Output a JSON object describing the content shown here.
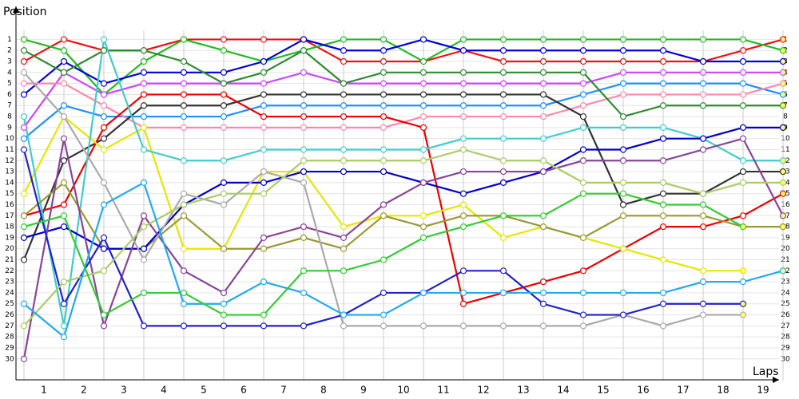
{
  "chart_data": {
    "type": "line",
    "y_label": "Position",
    "x_label": "Laps",
    "x": [
      0,
      1,
      2,
      3,
      4,
      5,
      6,
      7,
      8,
      9,
      10,
      11,
      12,
      13,
      14,
      15,
      16,
      17,
      18,
      19
    ],
    "xlim": [
      -0.2,
      18.9
    ],
    "ylim": [
      31.9,
      -2
    ],
    "xticks": [
      {
        "value": 0.5,
        "label": "1"
      },
      {
        "value": 1.5,
        "label": "2"
      },
      {
        "value": 2.5,
        "label": "3"
      },
      {
        "value": 3.5,
        "label": "4"
      },
      {
        "value": 4.5,
        "label": "5"
      },
      {
        "value": 5.5,
        "label": "6"
      },
      {
        "value": 6.5,
        "label": "7"
      },
      {
        "value": 7.5,
        "label": "8"
      },
      {
        "value": 8.5,
        "label": "9"
      },
      {
        "value": 9.5,
        "label": "10"
      },
      {
        "value": 10.5,
        "label": "11"
      },
      {
        "value": 11.5,
        "label": "12"
      },
      {
        "value": 12.5,
        "label": "13"
      },
      {
        "value": 13.5,
        "label": "14"
      },
      {
        "value": 14.5,
        "label": "15"
      },
      {
        "value": 15.5,
        "label": "16"
      },
      {
        "value": 16.5,
        "label": "17"
      },
      {
        "value": 17.5,
        "label": "18"
      },
      {
        "value": 18.5,
        "label": "19"
      }
    ],
    "yticks": [
      1,
      2,
      3,
      4,
      5,
      6,
      7,
      8,
      9,
      10,
      11,
      12,
      13,
      14,
      15,
      16,
      17,
      18,
      19,
      20,
      21,
      22,
      23,
      24,
      25,
      26,
      27,
      28,
      29,
      30
    ],
    "grid": true,
    "series": [
      {
        "color": "#ee1111",
        "values": [
          3,
          1,
          2,
          2,
          1,
          1,
          1,
          1,
          3,
          3,
          3,
          2,
          3,
          3,
          3,
          3,
          3,
          3,
          2,
          1
        ]
      },
      {
        "color": "#22bb22",
        "values": [
          1,
          2,
          6,
          3,
          1,
          2,
          3,
          2,
          1,
          1,
          3,
          1,
          1,
          1,
          1,
          1,
          1,
          1,
          1,
          2
        ]
      },
      {
        "color": "#0000dd",
        "values": [
          6,
          3,
          5,
          4,
          4,
          4,
          3,
          1,
          2,
          2,
          1,
          2,
          2,
          2,
          2,
          2,
          2,
          3,
          3,
          3
        ]
      },
      {
        "color": "#cc44ff",
        "values": [
          9,
          4,
          6,
          5,
          5,
          5,
          5,
          4,
          5,
          5,
          5,
          5,
          5,
          5,
          5,
          4,
          4,
          4,
          4,
          4
        ]
      },
      {
        "color": "#1e90ff",
        "values": [
          10,
          7,
          8,
          8,
          8,
          8,
          7,
          7,
          7,
          7,
          7,
          7,
          7,
          7,
          6,
          5,
          5,
          5,
          5,
          6
        ]
      },
      {
        "color": "#ff88aa",
        "values": [
          5,
          5,
          7,
          9,
          9,
          9,
          9,
          9,
          9,
          9,
          8,
          8,
          8,
          8,
          7,
          6,
          6,
          6,
          6,
          5
        ]
      },
      {
        "color": "#333333",
        "values": [
          21,
          12,
          10,
          7,
          7,
          7,
          6,
          6,
          6,
          6,
          6,
          6,
          6,
          6,
          8,
          16,
          15,
          15,
          13,
          13
        ]
      },
      {
        "color": "#ee0000",
        "values": [
          17,
          16,
          9,
          6,
          6,
          6,
          8,
          8,
          8,
          8,
          9,
          25,
          24,
          23,
          22,
          20,
          18,
          18,
          17,
          15
        ]
      },
      {
        "color": "#e6e600",
        "values": [
          15,
          8,
          11,
          9,
          20,
          20,
          13,
          13,
          18,
          17,
          17,
          16,
          19,
          18,
          19,
          20,
          21,
          22,
          22,
          null
        ]
      },
      {
        "color": "#2e8b2e",
        "values": [
          2,
          4,
          2,
          2,
          3,
          5,
          4,
          2,
          5,
          4,
          4,
          4,
          4,
          4,
          4,
          8,
          7,
          7,
          7,
          7
        ]
      },
      {
        "color": "#40cccc",
        "values": [
          8,
          27,
          1,
          11,
          12,
          12,
          11,
          11,
          11,
          11,
          11,
          10,
          10,
          10,
          9,
          9,
          9,
          10,
          12,
          12
        ]
      },
      {
        "color": "#999933",
        "values": [
          17,
          14,
          20,
          20,
          17,
          20,
          20,
          19,
          20,
          17,
          18,
          17,
          17,
          18,
          19,
          17,
          17,
          17,
          18,
          18
        ]
      },
      {
        "color": "#0000cc",
        "values": [
          19,
          18,
          20,
          20,
          16,
          14,
          14,
          13,
          13,
          13,
          14,
          15,
          14,
          13,
          11,
          11,
          10,
          10,
          9,
          9
        ]
      },
      {
        "color": "#884499",
        "values": [
          30,
          10,
          27,
          17,
          22,
          24,
          19,
          18,
          19,
          16,
          14,
          13,
          13,
          13,
          12,
          12,
          12,
          11,
          10,
          17
        ]
      },
      {
        "color": "#aaaaaa",
        "values": [
          4,
          8,
          14,
          21,
          15,
          16,
          13,
          14,
          27,
          27,
          27,
          27,
          27,
          27,
          27,
          26,
          27,
          26,
          26,
          null
        ]
      },
      {
        "color": "#2222cc",
        "values": [
          11,
          25,
          19,
          27,
          27,
          27,
          27,
          27,
          26,
          24,
          24,
          22,
          22,
          25,
          26,
          26,
          25,
          25,
          25,
          null
        ]
      },
      {
        "color": "#aacc66",
        "values": [
          27,
          23,
          22,
          18,
          16,
          15,
          15,
          12,
          12,
          12,
          12,
          11,
          12,
          12,
          14,
          14,
          14,
          15,
          14,
          14
        ]
      },
      {
        "color": "#22aaee",
        "values": [
          25,
          28,
          16,
          14,
          25,
          25,
          23,
          24,
          26,
          26,
          24,
          24,
          24,
          24,
          24,
          24,
          24,
          23,
          23,
          22
        ]
      },
      {
        "color": "#33cc33",
        "values": [
          18,
          17,
          26,
          24,
          24,
          26,
          26,
          22,
          22,
          21,
          19,
          18,
          17,
          17,
          15,
          15,
          16,
          16,
          18,
          null
        ]
      }
    ]
  }
}
